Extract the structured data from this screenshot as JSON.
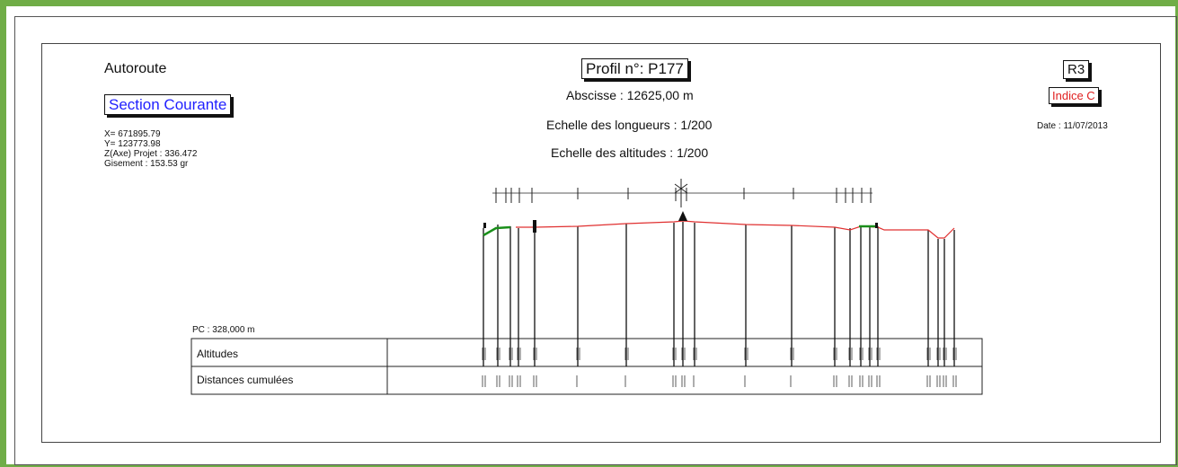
{
  "header": {
    "road_type": "Autoroute",
    "section": "Section Courante",
    "coords": [
      "X= 671895.79",
      "Y= 123773.98",
      "Z(Axe) Projet : 336.472",
      "Gisement : 153.53 gr"
    ],
    "profile_title": "Profil n°: P177",
    "abscisse": "Abscisse : 12625,00 m",
    "echelle_longueurs": "Echelle des longueurs : 1/200",
    "echelle_altitudes": "Echelle des altitudes : 1/200",
    "revision": "R3",
    "indice": "Indice C",
    "date": "Date : 11/07/2013"
  },
  "table": {
    "pc_label": "PC : 328,000 m",
    "row_labels": [
      "Altitudes",
      "Distances cumulées"
    ]
  },
  "colors": {
    "frame": "#70ad47",
    "section_text": "#1f1fff",
    "indice_text": "#e02020",
    "projet_line": "#e03030",
    "terrain_line": "#1a8f1a"
  }
}
